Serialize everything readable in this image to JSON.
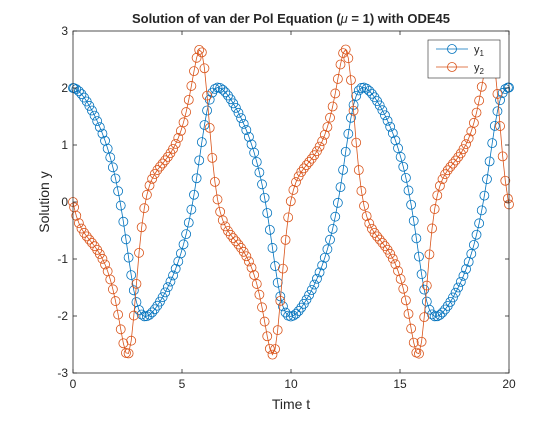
{
  "chart_data": {
    "type": "line",
    "title": "Solution of van der Pol Equation (μ = 1) with ODE45",
    "title_parts": {
      "before": "Solution of van der Pol Equation (",
      "symbol": "μ",
      "after": " = 1) with ODE45"
    },
    "xlabel": "Time t",
    "ylabel": "Solution y",
    "xlim": [
      0,
      20
    ],
    "ylim": [
      -3,
      3
    ],
    "xticks": [
      0,
      5,
      10,
      15,
      20
    ],
    "xtick_labels": [
      "0",
      "5",
      "10",
      "15",
      "20"
    ],
    "yticks": [
      -3,
      -2,
      -1,
      0,
      1,
      2,
      3
    ],
    "ytick_labels": [
      "-3",
      "-2",
      "-1",
      "0",
      "1",
      "2",
      "3"
    ],
    "grid": false,
    "legend_position": "top-right",
    "marker": "circle",
    "series": [
      {
        "label": "y",
        "subscript": "1",
        "color": "#0072BD"
      },
      {
        "label": "y",
        "subscript": "2",
        "color": "#D95319"
      }
    ],
    "model": {
      "equation": "van der Pol",
      "mu": 1,
      "initial_conditions": [
        2,
        0
      ],
      "t_span": [
        0,
        20
      ]
    }
  }
}
